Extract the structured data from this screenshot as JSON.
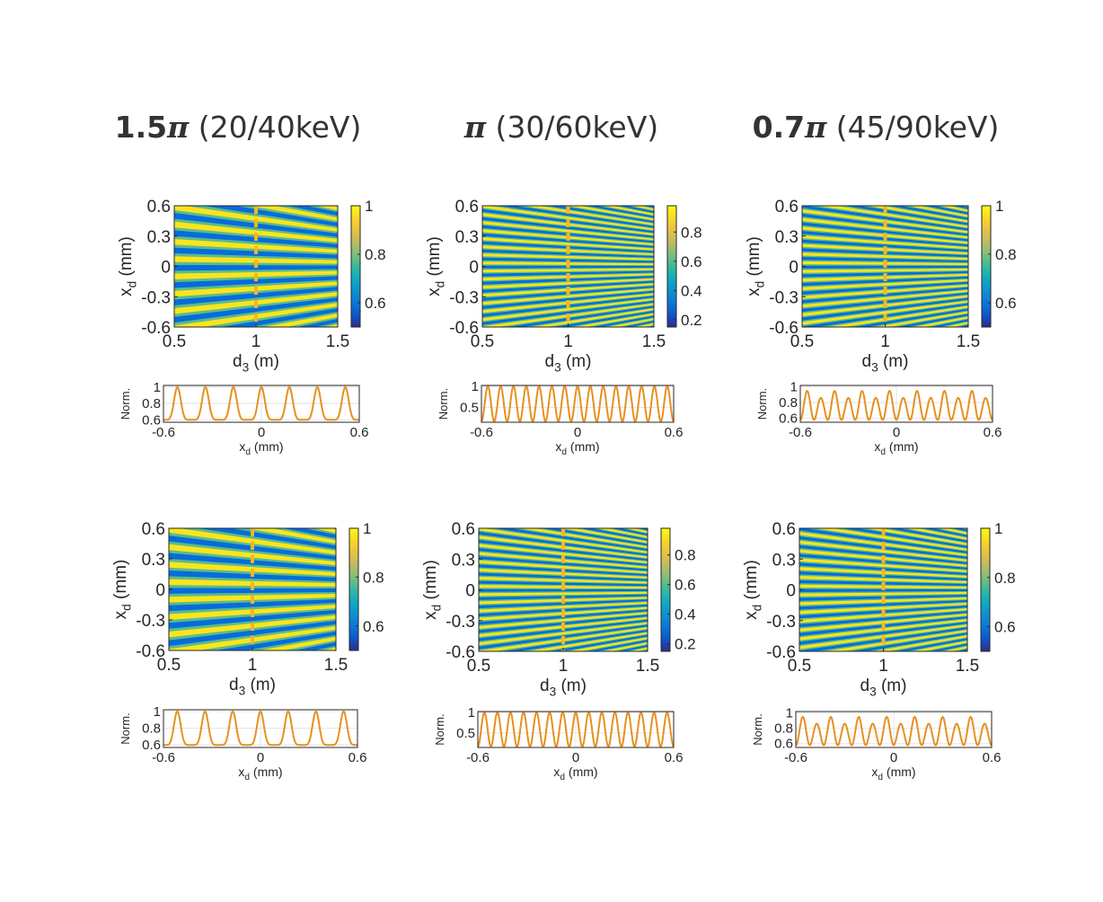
{
  "columns": [
    {
      "bold": "1.5",
      "pi": "π",
      "rest": " (20/40keV)"
    },
    {
      "bold": "",
      "pi": "π",
      "rest": " (30/60keV)"
    },
    {
      "bold": "0.7",
      "pi": "π",
      "rest": " (45/90keV)"
    }
  ],
  "chart_data": [
    {
      "type": "heatmap",
      "panel": "row1-col1",
      "xlabel": "d_3 (m)",
      "ylabel": "x_d (mm)",
      "xlim": [
        0.5,
        1.5
      ],
      "ylim": [
        -0.6,
        0.6
      ],
      "xticks": [
        "0.5",
        "1",
        "1.5"
      ],
      "yticks": [
        "0.6",
        "0.3",
        "0",
        "-0.3",
        "-0.6"
      ],
      "colorbar_range": [
        0.5,
        1
      ],
      "colorbar_ticks": [
        "1",
        "0.8",
        "0.6"
      ],
      "fringes": 7,
      "marker_line_x": 1
    },
    {
      "type": "heatmap",
      "panel": "row1-col2",
      "xlabel": "d_3 (m)",
      "ylabel": "x_d (mm)",
      "xlim": [
        0.5,
        1.5
      ],
      "ylim": [
        -0.6,
        0.6
      ],
      "xticks": [
        "0.5",
        "1",
        "1.5"
      ],
      "yticks": [
        "0.6",
        "0.3",
        "0",
        "-0.3",
        "-0.6"
      ],
      "colorbar_range": [
        0.15,
        0.98
      ],
      "colorbar_ticks": [
        "0.8",
        "0.6",
        "0.4",
        "0.2"
      ],
      "fringes": 15,
      "marker_line_x": 1
    },
    {
      "type": "heatmap",
      "panel": "row1-col3",
      "xlabel": "d_3 (m)",
      "ylabel": "x_d (mm)",
      "xlim": [
        0.5,
        1.5
      ],
      "ylim": [
        -0.6,
        0.6
      ],
      "xticks": [
        "0.5",
        "1",
        "1.5"
      ],
      "yticks": [
        "0.6",
        "0.3",
        "0",
        "-0.3",
        "-0.6"
      ],
      "colorbar_range": [
        0.5,
        1
      ],
      "colorbar_ticks": [
        "1",
        "0.8",
        "0.6"
      ],
      "fringes": 14,
      "marker_line_x": 1
    },
    {
      "type": "line",
      "panel": "row1-col1-profile",
      "xlabel": "x_d (mm)",
      "ylabel": "Norm.",
      "xlim": [
        -0.6,
        0.6
      ],
      "ylim": [
        0.57,
        1.02
      ],
      "xticks": [
        "-0.6",
        "0",
        "0.6"
      ],
      "yticks": [
        "1",
        "0.8",
        "0.6"
      ],
      "color": "#E6911F",
      "peaks": 7,
      "min": 0.6,
      "max": 1,
      "shape": "peaked"
    },
    {
      "type": "line",
      "panel": "row1-col2-profile",
      "xlabel": "x_d (mm)",
      "ylabel": "Norm.",
      "xlim": [
        -0.6,
        0.6
      ],
      "ylim": [
        0.15,
        1.02
      ],
      "xticks": [
        "-0.6",
        "0",
        "0.6"
      ],
      "yticks": [
        "1",
        "0.5"
      ],
      "color": "#E6911F",
      "peaks": 15,
      "min": 0.17,
      "max": 1,
      "shape": "sine"
    },
    {
      "type": "line",
      "panel": "row1-col3-profile",
      "xlabel": "x_d (mm)",
      "ylabel": "Norm.",
      "xlim": [
        -0.6,
        0.6
      ],
      "ylim": [
        0.55,
        1.02
      ],
      "xticks": [
        "-0.6",
        "0",
        "0.6"
      ],
      "yticks": [
        "1",
        "0.8",
        "0.6"
      ],
      "color": "#E6911F",
      "peaks": 14,
      "min": 0.58,
      "max": 0.95,
      "shape": "beat"
    },
    {
      "type": "heatmap",
      "panel": "row2-col1",
      "xlabel": "d_3 (m)",
      "ylabel": "x_d (mm)",
      "xlim": [
        0.5,
        1.5
      ],
      "ylim": [
        -0.6,
        0.6
      ],
      "xticks": [
        "0.5",
        "1",
        "1.5"
      ],
      "yticks": [
        "0.6",
        "0.3",
        "0",
        "-0.3",
        "-0.6"
      ],
      "colorbar_range": [
        0.5,
        1
      ],
      "colorbar_ticks": [
        "1",
        "0.8",
        "0.6"
      ],
      "fringes": 7,
      "marker_line_x": 1
    },
    {
      "type": "heatmap",
      "panel": "row2-col2",
      "xlabel": "d_3 (m)",
      "ylabel": "x_d (mm)",
      "xlim": [
        0.5,
        1.5
      ],
      "ylim": [
        -0.6,
        0.6
      ],
      "xticks": [
        "0.5",
        "1",
        "1.5"
      ],
      "yticks": [
        "0.6",
        "0.3",
        "0",
        "-0.3",
        "-0.6"
      ],
      "colorbar_range": [
        0.15,
        0.98
      ],
      "colorbar_ticks": [
        "0.8",
        "0.6",
        "0.4",
        "0.2"
      ],
      "fringes": 15,
      "marker_line_x": 1
    },
    {
      "type": "heatmap",
      "panel": "row2-col3",
      "xlabel": "d_3 (m)",
      "ylabel": "x_d (mm)",
      "xlim": [
        0.5,
        1.5
      ],
      "ylim": [
        -0.6,
        0.6
      ],
      "xticks": [
        "0.5",
        "1",
        "1.5"
      ],
      "yticks": [
        "0.6",
        "0.3",
        "0",
        "-0.3",
        "-0.6"
      ],
      "colorbar_range": [
        0.5,
        1
      ],
      "colorbar_ticks": [
        "1",
        "0.8",
        "0.6"
      ],
      "fringes": 14,
      "marker_line_x": 1
    },
    {
      "type": "line",
      "panel": "row2-col1-profile",
      "xlabel": "x_d (mm)",
      "ylabel": "Norm.",
      "xlim": [
        -0.6,
        0.6
      ],
      "ylim": [
        0.57,
        1.02
      ],
      "xticks": [
        "-0.6",
        "0",
        "0.6"
      ],
      "yticks": [
        "1",
        "0.8",
        "0.6"
      ],
      "color": "#E6911F",
      "peaks": 7,
      "min": 0.6,
      "max": 1,
      "shape": "peaked"
    },
    {
      "type": "line",
      "panel": "row2-col2-profile",
      "xlabel": "x_d (mm)",
      "ylabel": "Norm.",
      "xlim": [
        -0.6,
        0.6
      ],
      "ylim": [
        0.15,
        1.02
      ],
      "xticks": [
        "-0.6",
        "0",
        "0.6"
      ],
      "yticks": [
        "1",
        "0.5"
      ],
      "color": "#E6911F",
      "peaks": 15,
      "min": 0.17,
      "max": 1,
      "shape": "sine"
    },
    {
      "type": "line",
      "panel": "row2-col3-profile",
      "xlabel": "x_d (mm)",
      "ylabel": "Norm.",
      "xlim": [
        -0.6,
        0.6
      ],
      "ylim": [
        0.55,
        1.02
      ],
      "xticks": [
        "-0.6",
        "0",
        "0.6"
      ],
      "yticks": [
        "1",
        "0.8",
        "0.6"
      ],
      "color": "#E6911F",
      "peaks": 14,
      "min": 0.58,
      "max": 0.95,
      "shape": "beat"
    }
  ]
}
